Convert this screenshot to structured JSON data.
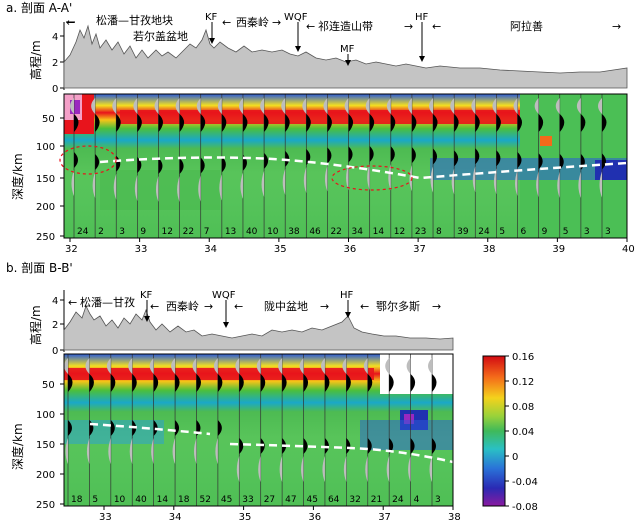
{
  "panel_a": {
    "caption": "a. 剖面 A-A'",
    "elev_label": "高程/m",
    "depth_label": "深度/km",
    "elev_ticks": [
      "4",
      "2",
      "0"
    ],
    "depth_ticks": [
      "50",
      "100",
      "150",
      "200",
      "250"
    ],
    "x_ticks": [
      "32",
      "33",
      "34",
      "35",
      "36",
      "37",
      "38",
      "39",
      "40"
    ],
    "regions": [
      "松潘—甘孜地块",
      "若尔盖盆地",
      "西秦岭",
      "祁连造山带",
      "阿拉善"
    ],
    "faults": [
      "KF",
      "WQF",
      "MF",
      "HF"
    ],
    "counts": [
      "24",
      "2",
      "3",
      "9",
      "12",
      "22",
      "7",
      "13",
      "40",
      "10",
      "38",
      "46",
      "22",
      "34",
      "14",
      "12",
      "23",
      "8",
      "39",
      "24",
      "5",
      "6",
      "9",
      "5",
      "3",
      "3"
    ]
  },
  "panel_b": {
    "caption": "b. 剖面 B-B'",
    "elev_label": "高程/m",
    "depth_label": "深度/km",
    "elev_ticks": [
      "4",
      "2",
      "0"
    ],
    "depth_ticks": [
      "50",
      "100",
      "150",
      "200",
      "250"
    ],
    "x_ticks": [
      "33",
      "34",
      "35",
      "36",
      "37",
      "38"
    ],
    "regions": [
      "松潘—甘孜",
      "西秦岭",
      "陇中盆地",
      "鄂尔多斯"
    ],
    "faults": [
      "KF",
      "WQF",
      "HF"
    ],
    "counts": [
      "18",
      "5",
      "10",
      "40",
      "14",
      "18",
      "52",
      "45",
      "33",
      "27",
      "47",
      "45",
      "64",
      "32",
      "21",
      "24",
      "4",
      "3"
    ]
  },
  "colorbar": {
    "ticks": [
      "0.16",
      "0.12",
      "0.08",
      "0.04",
      "0",
      "-0.04",
      "-0.08"
    ],
    "min": -0.08,
    "max": 0.16
  }
}
